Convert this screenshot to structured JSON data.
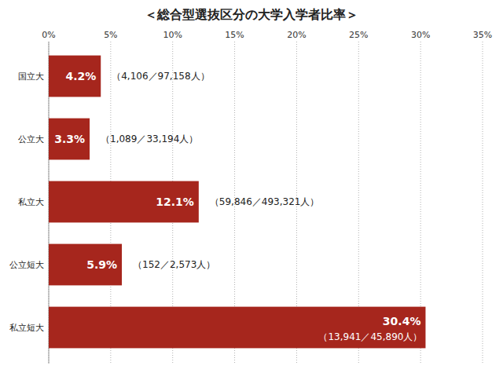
{
  "chart_data": {
    "type": "bar",
    "orientation": "horizontal",
    "title": "＜総合型選抜区分の大学入学者比率＞",
    "categories": [
      "国立大",
      "公立大",
      "私立大",
      "公立短大",
      "私立短大"
    ],
    "values": [
      4.2,
      3.3,
      12.1,
      5.9,
      30.4
    ],
    "value_labels": [
      "4.2%",
      "3.3%",
      "12.1%",
      "5.9%",
      "30.4%"
    ],
    "annotations": [
      "（4,106／97,158人）",
      "（1,089／33,194人）",
      "（59,846／493,321人）",
      "（152／2,573人）",
      "（13,941／45,890人）"
    ],
    "color": "#a6261d",
    "xlim": [
      0,
      35
    ],
    "xticks": [
      {
        "value": 0,
        "label": "0%"
      },
      {
        "value": 5,
        "label": "5%"
      },
      {
        "value": 10,
        "label": "10%"
      },
      {
        "value": 15,
        "label": "15%"
      },
      {
        "value": 20,
        "label": "20%"
      },
      {
        "value": 25,
        "label": "25%"
      },
      {
        "value": 30,
        "label": "30%"
      },
      {
        "value": 35,
        "label": "35%"
      }
    ],
    "grid": true,
    "data_labels": true
  }
}
